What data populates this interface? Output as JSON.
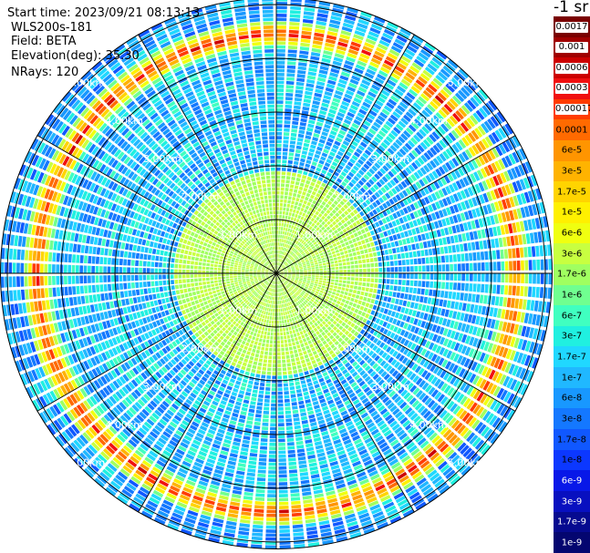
{
  "header": {
    "start_time": "Start time: 2023/09/21 08:13:13",
    "device": "WLS200s-181",
    "field": "Field: BETA",
    "elevation": "Elevation(deg): 35.30",
    "nrays": "NRays: 120"
  },
  "colorbar": {
    "unit": "-1 sr",
    "labels": [
      "0.0017",
      "0.001",
      "0.0006",
      "0.0003",
      "0.00017",
      "0.0001",
      "6e-5",
      "3e-5",
      "1.7e-5",
      "1e-5",
      "6e-6",
      "3e-6",
      "1.7e-6",
      "1e-6",
      "6e-7",
      "3e-7",
      "1.7e-7",
      "1e-7",
      "6e-8",
      "3e-8",
      "1.7e-8",
      "1e-8",
      "6e-9",
      "3e-9",
      "1.7e-9",
      "1e-9"
    ],
    "colors": [
      "#7a0000",
      "#a00000",
      "#cc0000",
      "#f01010",
      "#ff3c00",
      "#ff6a00",
      "#ff9500",
      "#ffb300",
      "#ffd400",
      "#fff000",
      "#f0ff10",
      "#c8ff40",
      "#a0ff60",
      "#70ff90",
      "#40ffc0",
      "#20f0e0",
      "#20d8ff",
      "#20b8ff",
      "#1898ff",
      "#1478ff",
      "#1058ff",
      "#0c38ff",
      "#0818e8",
      "#0810c0",
      "#060a90",
      "#040670"
    ]
  },
  "chart_data": {
    "type": "polar-ppi",
    "field": "BETA",
    "elevation_deg": 35.3,
    "n_rays": 120,
    "range_km": [
      0,
      5.2
    ],
    "range_rings": [
      {
        "km": 1,
        "label": "1.00km"
      },
      {
        "km": 2,
        "label": "2.00km"
      },
      {
        "km": 3,
        "label": "3.00km"
      },
      {
        "km": 4,
        "label": "4.00km"
      },
      {
        "km": 5,
        "label": "5.00km"
      }
    ],
    "spokes_deg": [
      0,
      30,
      60,
      90,
      120,
      150,
      180,
      210,
      240,
      270,
      300,
      330
    ],
    "color_scale": "log",
    "value_range": [
      1e-09,
      0.0017
    ],
    "bright_ring_km": [
      4.2,
      4.7
    ]
  }
}
